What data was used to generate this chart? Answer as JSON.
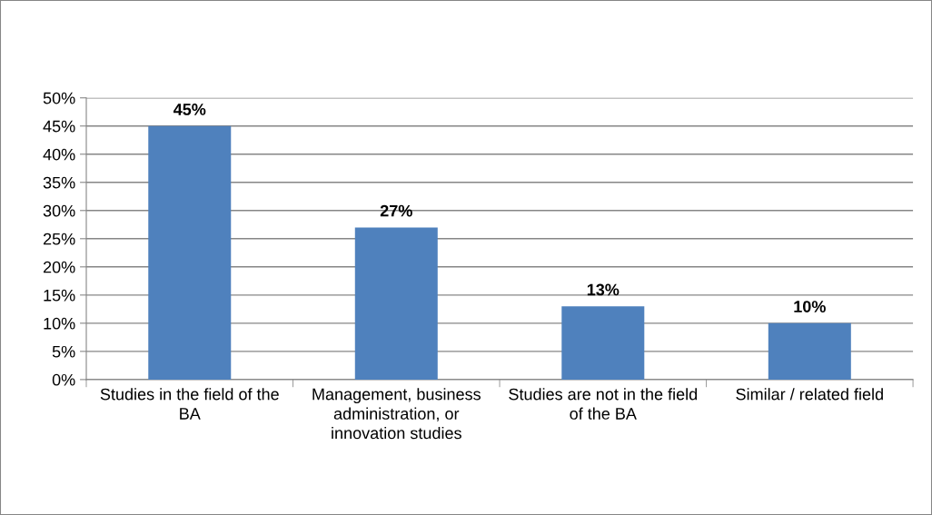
{
  "chart_data": {
    "type": "bar",
    "categories": [
      "Studies in the field of the BA",
      "Management, business administration, or innovation studies",
      "Studies are not in the field of the BA",
      "Similar / related field"
    ],
    "values": [
      45,
      27,
      13,
      10
    ],
    "value_labels": [
      "45%",
      "27%",
      "13%",
      "10%"
    ],
    "color": "#4f81bd",
    "ylim": [
      0,
      50
    ],
    "yticks": [
      {
        "value": 0,
        "label": "0%"
      },
      {
        "value": 5,
        "label": "5%"
      },
      {
        "value": 10,
        "label": "10%"
      },
      {
        "value": 15,
        "label": "15%"
      },
      {
        "value": 20,
        "label": "20%"
      },
      {
        "value": 25,
        "label": "25%"
      },
      {
        "value": 30,
        "label": "30%"
      },
      {
        "value": 35,
        "label": "35%"
      },
      {
        "value": 40,
        "label": "40%"
      },
      {
        "value": 45,
        "label": "45%"
      },
      {
        "value": 50,
        "label": "50%"
      }
    ],
    "grid": "y"
  }
}
